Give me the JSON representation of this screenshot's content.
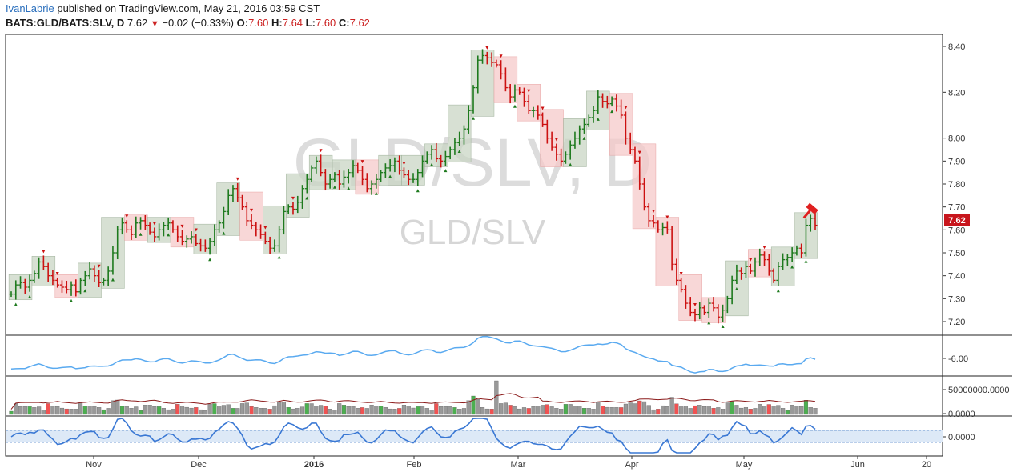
{
  "header": {
    "author": "IvanLabrie",
    "published": "published on TradingView.com, May 21, 2016 03:59 CST",
    "symbol": "BATS:GLD/BATS:SLV, D",
    "last": "7.62",
    "change": "−0.02 (−0.33%)",
    "o_label": "O:",
    "o": "7.60",
    "h_label": "H:",
    "h": "7.64",
    "l_label": "L:",
    "l": "7.60",
    "c_label": "C:",
    "c": "7.62"
  },
  "watermark": {
    "big": "GLD/SLV, D",
    "small": "GLD/SLV"
  },
  "price_badge": "7.62",
  "colors": {
    "up": "#1e7a1e",
    "down": "#cc1111",
    "up_box": "#c9d6c4",
    "down_box": "#f6c9c9",
    "osc": "#5aaaf0",
    "vol_up": "#4caf50",
    "vol_down": "#f05252",
    "vol_flat": "#999999",
    "vol_ma": "#8b1a1a",
    "mom": "#3a78d4",
    "mom_band": "#dde9f7"
  },
  "chart_data": {
    "type": "ohlc",
    "x_ticks": [
      "Nov",
      "Dec",
      "2016",
      "Feb",
      "Mar",
      "Apr",
      "May",
      "Jun",
      "20"
    ],
    "price_ticks": [
      "8.40",
      "8.20",
      "8.00",
      "7.90",
      "7.80",
      "7.70",
      "7.60",
      "7.50",
      "7.40",
      "7.30",
      "7.20"
    ],
    "price_ylim": [
      7.16,
      8.43
    ],
    "osc_tick": "-6.00",
    "vol_ticks": [
      "50000000.0000",
      "0.0000"
    ],
    "mom_tick": "0.0000",
    "closes": [
      7.32,
      7.36,
      7.37,
      7.35,
      7.38,
      7.41,
      7.46,
      7.44,
      7.4,
      7.38,
      7.36,
      7.35,
      7.34,
      7.36,
      7.33,
      7.38,
      7.4,
      7.43,
      7.4,
      7.37,
      7.38,
      7.42,
      7.5,
      7.6,
      7.63,
      7.6,
      7.58,
      7.63,
      7.64,
      7.62,
      7.59,
      7.57,
      7.6,
      7.62,
      7.63,
      7.6,
      7.57,
      7.55,
      7.56,
      7.57,
      7.54,
      7.53,
      7.52,
      7.55,
      7.6,
      7.63,
      7.68,
      7.75,
      7.78,
      7.74,
      7.7,
      7.64,
      7.62,
      7.6,
      7.58,
      7.55,
      7.52,
      7.53,
      7.6,
      7.68,
      7.7,
      7.69,
      7.72,
      7.78,
      7.82,
      7.87,
      7.9,
      7.85,
      7.8,
      7.82,
      7.84,
      7.8,
      7.83,
      7.85,
      7.88,
      7.86,
      7.82,
      7.78,
      7.8,
      7.82,
      7.85,
      7.87,
      7.88,
      7.9,
      7.86,
      7.84,
      7.82,
      7.82,
      7.85,
      7.9,
      7.93,
      7.95,
      7.91,
      7.9,
      7.92,
      7.95,
      7.98,
      8.0,
      8.04,
      8.12,
      8.22,
      8.34,
      8.36,
      8.35,
      8.33,
      8.32,
      8.28,
      8.22,
      8.18,
      8.21,
      8.2,
      8.16,
      8.12,
      8.12,
      8.1,
      8.06,
      8.0,
      7.96,
      7.93,
      7.9,
      7.93,
      7.97,
      8.0,
      8.04,
      8.06,
      8.09,
      8.12,
      8.18,
      8.16,
      8.15,
      8.17,
      8.14,
      8.1,
      8.0,
      7.95,
      7.9,
      7.8,
      7.7,
      7.64,
      7.63,
      7.6,
      7.61,
      7.6,
      7.45,
      7.38,
      7.34,
      7.28,
      7.24,
      7.23,
      7.26,
      7.24,
      7.28,
      7.26,
      7.22,
      7.25,
      7.3,
      7.38,
      7.42,
      7.41,
      7.44,
      7.42,
      7.46,
      7.49,
      7.47,
      7.42,
      7.38,
      7.44,
      7.47,
      7.48,
      7.5,
      7.52,
      7.5,
      7.62,
      7.65,
      7.62
    ]
  },
  "legend": {}
}
